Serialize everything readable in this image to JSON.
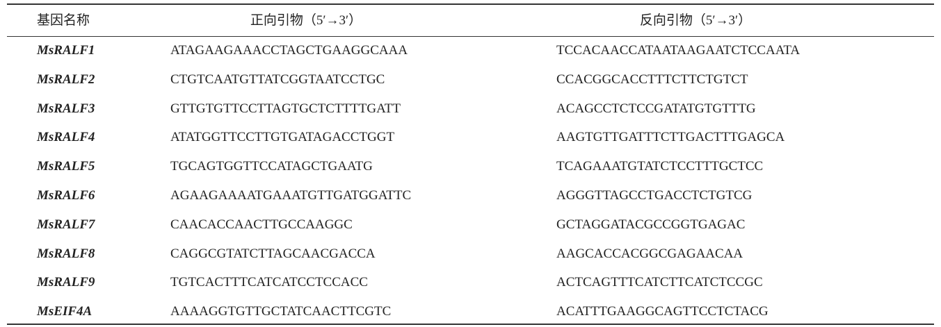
{
  "table": {
    "header": [
      "基因名称",
      "正向引物（5′→3′）",
      "反向引物（5′→3′）"
    ],
    "rows": [
      [
        "MsRALF1",
        "ATAGAAGAAACCTAGCTGAAGGCAAA",
        "TCCACAACCATAATAAGAATCTCCAATA"
      ],
      [
        "MsRALF2",
        "CTGTCAATGTTATCGGTAATCCTGC",
        "CCACGGCACCTTTCTTCTGTCT"
      ],
      [
        "MsRALF3",
        "GTTGTGTTCCTTAGTGCTCTTTTGATT",
        "ACAGCCTCTCCGATATGTGTTTG"
      ],
      [
        "MsRALF4",
        "ATATGGTTCCTTGTGATAGACCTGGT",
        "AAGTGTTGATTTCTTGACTTTGAGCA"
      ],
      [
        "MsRALF5",
        "TGCAGTGGTTCCATAGCTGAATG",
        "TCAGAAATGTATCTCCTTTGCTCC"
      ],
      [
        "MsRALF6",
        "AGAAGAAAATGAAATGTTGATGGATTC",
        "AGGGTTAGCCTGACCTCTGTCG"
      ],
      [
        "MsRALF7",
        "CAACACCAACTTGCCAAGGC",
        "GCTAGGATACGCCGGTGAGAC"
      ],
      [
        "MsRALF8",
        "CAGGCGTATCTTAGCAACGACCA",
        "AAGCACCACGGCGAGAACAA"
      ],
      [
        "MsRALF9",
        "TGTCACTTTCATCATCCTCCACC",
        "ACTCAGTTTCATCTTCATCTCCGC"
      ],
      [
        "MsEIF4A",
        "AAAAGGTGTTGCTATCAACTTCGTC",
        "ACATTTGAAGGCAGTTCCTCTACG"
      ]
    ]
  }
}
